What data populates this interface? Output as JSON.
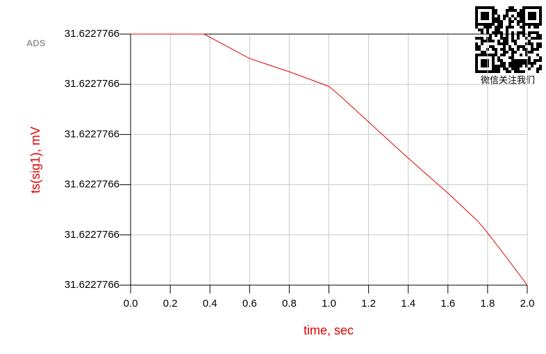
{
  "chart_data": {
    "type": "line",
    "watermark": "ADS",
    "qr_caption": "微信关注我们",
    "xlabel": "time, sec",
    "ylabel": "ts(sig1), mV",
    "x": [
      0,
      0.37,
      0.6,
      0.8,
      1.0,
      1.05,
      1.2,
      1.4,
      1.6,
      1.75,
      1.8,
      1.9,
      2.0
    ],
    "series": [
      {
        "name": "ts(sig1)",
        "color": "#e00000",
        "values": [
          31.62277661,
          31.62277661,
          31.62277660514,
          31.6227766025,
          31.62277659958,
          31.62277659792,
          31.6227765925,
          31.62277658528,
          31.62277657833,
          31.62277657278,
          31.62277657042,
          31.62277656528,
          31.62277656
        ]
      }
    ],
    "xlim": [
      0,
      2
    ],
    "xticks": [
      {
        "value": 0,
        "label": "0.0"
      },
      0.2,
      0.4,
      0.6,
      0.8,
      {
        "value": 1,
        "label": "1.0"
      },
      1.2,
      1.4,
      1.6,
      1.8,
      {
        "value": 2,
        "label": "2.0"
      }
    ],
    "ylim": [
      31.62277656,
      31.62277661
    ],
    "yticks": [
      {
        "value": 31.62277656,
        "label": "31.6227766"
      },
      {
        "value": 31.62277657,
        "label": "31.6227766"
      },
      {
        "value": 31.62277658,
        "label": "31.6227766"
      },
      {
        "value": 31.62277659,
        "label": "31.6227766"
      },
      {
        "value": 31.6227766,
        "label": "31.6227766"
      },
      {
        "value": 31.62277661,
        "label": "31.6227766"
      }
    ],
    "grid": true
  }
}
